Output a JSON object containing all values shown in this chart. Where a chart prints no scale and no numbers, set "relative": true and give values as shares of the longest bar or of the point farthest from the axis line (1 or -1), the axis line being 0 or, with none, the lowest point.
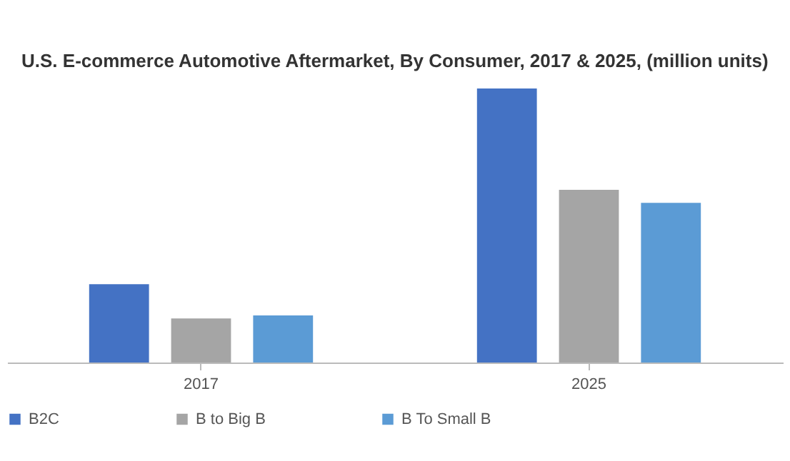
{
  "chart_data": {
    "type": "bar",
    "title": "U.S. E-commerce Automotive Aftermarket, By Consumer, 2017 & 2025, (million units)",
    "categories": [
      "2017",
      "2025"
    ],
    "relative": true,
    "legend": "bottom",
    "series": [
      {
        "name": "B2C",
        "color": "#4472c4",
        "values": [
          0.286,
          1
        ]
      },
      {
        "name": "B to Big B",
        "color": "#a5a5a5",
        "values": [
          0.161,
          0.63
        ]
      },
      {
        "name": "B To Small B",
        "color": "#5b9bd5",
        "values": [
          0.172,
          0.583
        ]
      }
    ]
  }
}
